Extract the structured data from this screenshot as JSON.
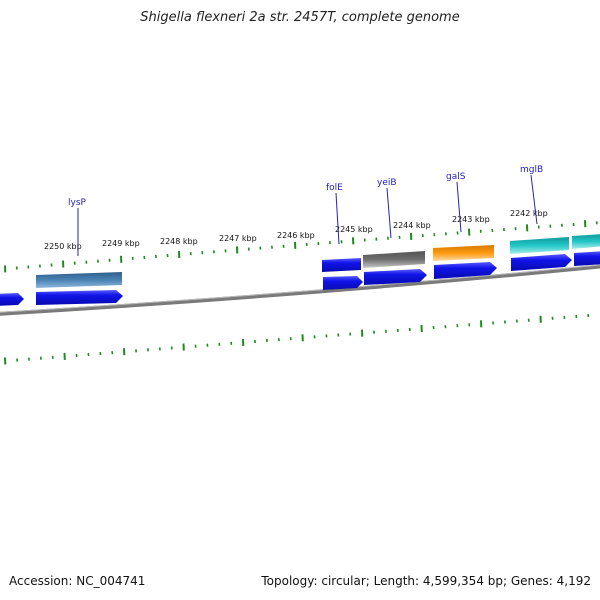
{
  "title": "Shigella flexneri 2a str. 2457T, complete genome",
  "kbp_labels": [
    "2250 kbp",
    "2249 kbp",
    "2248 kbp",
    "2247 kbp",
    "2246 kbp",
    "2245 kbp",
    "2244 kbp",
    "2243 kbp",
    "2242 kbp"
  ],
  "gene_labels": [
    "lysP",
    "folE",
    "yeiB",
    "galS",
    "mglB"
  ],
  "footer": {
    "accession": "Accession: NC_004741",
    "summary": "Topology: circular; Length: 4,599,354 bp; Genes: 4,192"
  },
  "colors": {
    "blue": "#0f14e6",
    "steel": "#4a82b4",
    "gray": "#6a6a6a",
    "orange": "#ff9a10",
    "cyan": "#22c6c6",
    "tick": "#1f8a1f",
    "backbone": "#7a7a7a"
  }
}
